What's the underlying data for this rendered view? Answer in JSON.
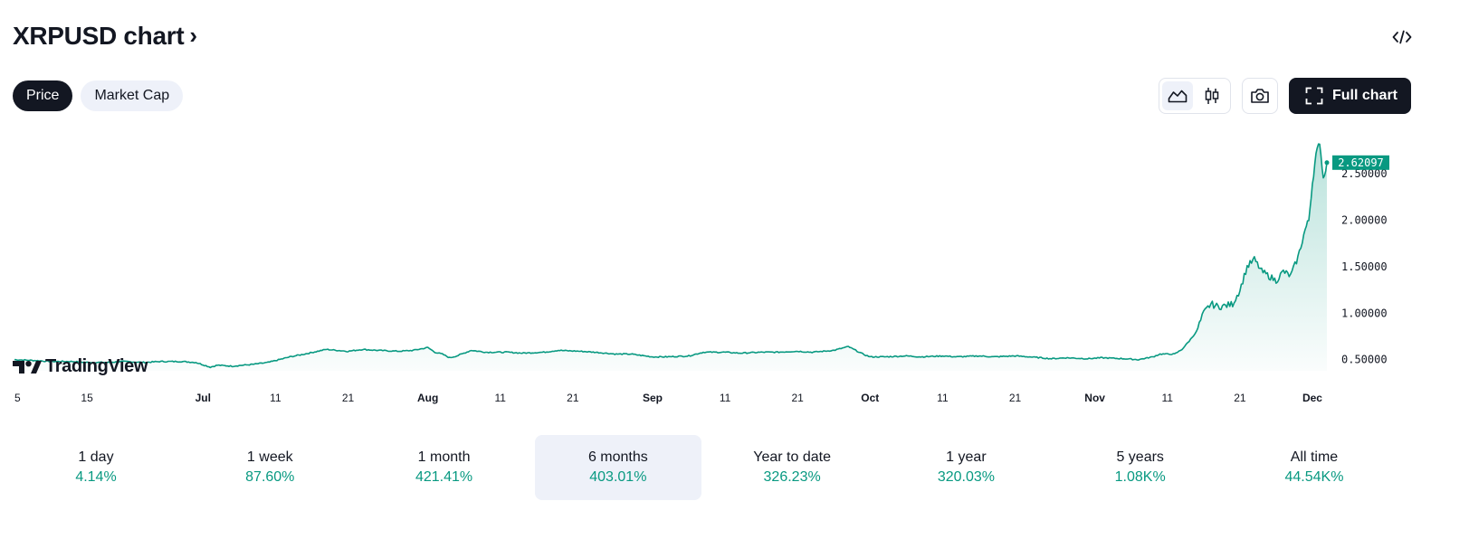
{
  "header": {
    "title": "XRPUSD chart",
    "chevron": "›",
    "embed_icon": "embed-code-icon"
  },
  "tabs": [
    {
      "label": "Price",
      "active": true
    },
    {
      "label": "Market Cap",
      "active": false
    }
  ],
  "toolbar": {
    "area_icon": "area-chart-icon",
    "candle_icon": "candlestick-icon",
    "camera_icon": "camera-icon",
    "fullscreen_icon": "fullscreen-icon",
    "full_chart_label": "Full chart"
  },
  "branding": {
    "logo_text": "TradingView"
  },
  "colors": {
    "line": "#089981",
    "accent": "#131722",
    "positive": "#089981"
  },
  "chart_data": {
    "type": "area",
    "title": "XRPUSD",
    "x_tick_labels": [
      "5",
      "15",
      "Jul",
      "11",
      "21",
      "Aug",
      "11",
      "21",
      "Sep",
      "11",
      "21",
      "Oct",
      "11",
      "21",
      "Nov",
      "11",
      "21",
      "Dec"
    ],
    "x_tick_bold": [
      false,
      false,
      true,
      false,
      false,
      true,
      false,
      false,
      true,
      false,
      false,
      true,
      false,
      false,
      true,
      false,
      false,
      true
    ],
    "x_tick_days": [
      0,
      10,
      26,
      36,
      46,
      57,
      67,
      77,
      88,
      98,
      108,
      118,
      128,
      138,
      149,
      159,
      169,
      179
    ],
    "y_ticks": [
      "0.50000",
      "1.00000",
      "1.50000",
      "2.00000",
      "2.50000"
    ],
    "y_tick_values": [
      0.5,
      1.0,
      1.5,
      2.0,
      2.5
    ],
    "ylim": [
      0.38,
      2.95
    ],
    "xlim_days": [
      0,
      181
    ],
    "x": [
      0,
      3,
      5,
      8,
      10,
      13,
      15,
      18,
      20,
      23,
      25,
      27,
      28,
      30,
      33,
      35,
      38,
      40,
      43,
      46,
      48,
      50,
      53,
      55,
      57,
      58,
      59,
      60,
      61,
      63,
      65,
      68,
      70,
      73,
      75,
      78,
      80,
      83,
      85,
      88,
      90,
      93,
      95,
      98,
      100,
      103,
      105,
      108,
      110,
      113,
      115,
      116,
      117,
      118,
      120,
      123,
      125,
      128,
      130,
      133,
      135,
      138,
      140,
      143,
      145,
      148,
      150,
      153,
      155,
      157,
      158,
      159,
      160,
      161,
      162,
      163,
      164,
      165,
      166,
      167,
      168,
      169,
      170,
      171,
      172,
      173,
      174,
      175,
      176,
      177,
      178,
      178.5,
      179,
      179.5,
      180,
      180.5,
      181
    ],
    "values": [
      0.5,
      0.49,
      0.48,
      0.48,
      0.47,
      0.47,
      0.48,
      0.47,
      0.48,
      0.48,
      0.47,
      0.42,
      0.44,
      0.43,
      0.45,
      0.47,
      0.53,
      0.56,
      0.61,
      0.59,
      0.61,
      0.6,
      0.59,
      0.6,
      0.63,
      0.58,
      0.56,
      0.52,
      0.54,
      0.6,
      0.58,
      0.58,
      0.57,
      0.58,
      0.6,
      0.59,
      0.58,
      0.56,
      0.56,
      0.53,
      0.53,
      0.54,
      0.58,
      0.58,
      0.57,
      0.58,
      0.58,
      0.59,
      0.58,
      0.6,
      0.64,
      0.6,
      0.56,
      0.53,
      0.53,
      0.54,
      0.53,
      0.54,
      0.53,
      0.54,
      0.53,
      0.54,
      0.53,
      0.51,
      0.52,
      0.51,
      0.52,
      0.51,
      0.5,
      0.53,
      0.56,
      0.56,
      0.56,
      0.61,
      0.7,
      0.8,
      1.0,
      1.1,
      1.07,
      1.08,
      1.1,
      1.25,
      1.5,
      1.58,
      1.45,
      1.4,
      1.35,
      1.45,
      1.4,
      1.6,
      1.9,
      2.0,
      2.4,
      2.7,
      2.85,
      2.45,
      2.62
    ],
    "last_value": "2.62097"
  },
  "periods": [
    {
      "label": "1 day",
      "value": "4.14%",
      "active": false
    },
    {
      "label": "1 week",
      "value": "87.60%",
      "active": false
    },
    {
      "label": "1 month",
      "value": "421.41%",
      "active": false
    },
    {
      "label": "6 months",
      "value": "403.01%",
      "active": true
    },
    {
      "label": "Year to date",
      "value": "326.23%",
      "active": false
    },
    {
      "label": "1 year",
      "value": "320.03%",
      "active": false
    },
    {
      "label": "5 years",
      "value": "1.08K%",
      "active": false
    },
    {
      "label": "All time",
      "value": "44.54K%",
      "active": false
    }
  ]
}
